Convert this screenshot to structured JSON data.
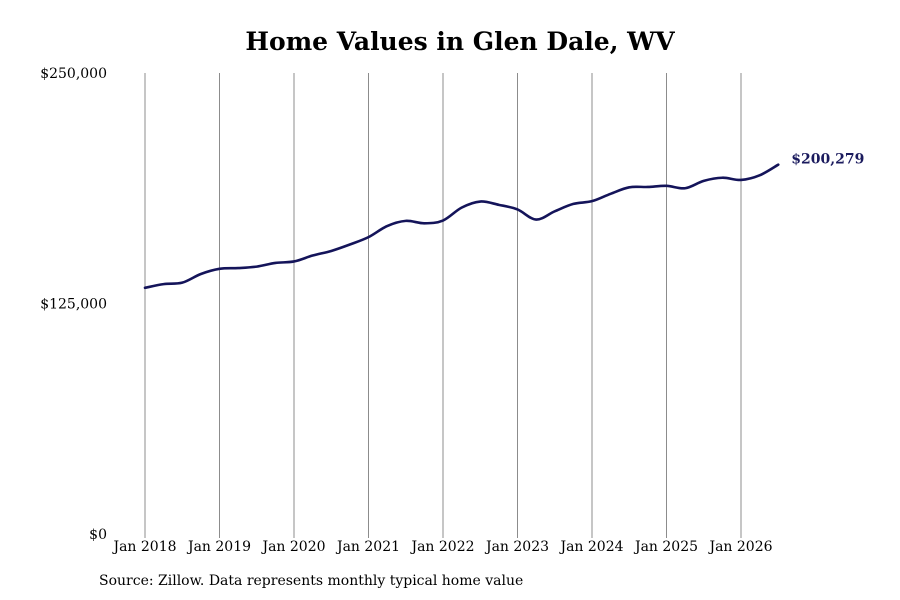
{
  "chart_data": {
    "type": "line",
    "title": "Home Values in Glen Dale, WV",
    "source": "Source: Zillow. Data represents monthly typical home value",
    "xlabel": "",
    "ylabel": "",
    "ylim": [
      0,
      250000
    ],
    "y_ticks": [
      {
        "value": 0,
        "label": "$0"
      },
      {
        "value": 125000,
        "label": "$125,000"
      },
      {
        "value": 250000,
        "label": "$250,000"
      }
    ],
    "x_ticks": [
      {
        "year": 2018,
        "label": "Jan 2018"
      },
      {
        "year": 2019,
        "label": "Jan 2019"
      },
      {
        "year": 2020,
        "label": "Jan 2020"
      },
      {
        "year": 2021,
        "label": "Jan 2021"
      },
      {
        "year": 2022,
        "label": "Jan 2022"
      },
      {
        "year": 2023,
        "label": "Jan 2023"
      },
      {
        "year": 2024,
        "label": "Jan 2024"
      },
      {
        "year": 2025,
        "label": "Jan 2025"
      },
      {
        "year": 2026,
        "label": "Jan 2026"
      }
    ],
    "vertical_grid": true,
    "line_color": "#14145a",
    "end_label": "$200,279",
    "series": [
      {
        "values": [
          {
            "x": 2018.0,
            "y": 133500
          },
          {
            "x": 2018.25,
            "y": 135500
          },
          {
            "x": 2018.5,
            "y": 136300
          },
          {
            "x": 2018.75,
            "y": 141000
          },
          {
            "x": 2019.0,
            "y": 143800
          },
          {
            "x": 2019.25,
            "y": 144200
          },
          {
            "x": 2019.5,
            "y": 145000
          },
          {
            "x": 2019.75,
            "y": 147000
          },
          {
            "x": 2020.0,
            "y": 147800
          },
          {
            "x": 2020.25,
            "y": 151000
          },
          {
            "x": 2020.5,
            "y": 153500
          },
          {
            "x": 2020.75,
            "y": 157000
          },
          {
            "x": 2021.0,
            "y": 161000
          },
          {
            "x": 2021.25,
            "y": 167000
          },
          {
            "x": 2021.5,
            "y": 169800
          },
          {
            "x": 2021.75,
            "y": 168500
          },
          {
            "x": 2022.0,
            "y": 170000
          },
          {
            "x": 2022.25,
            "y": 177000
          },
          {
            "x": 2022.5,
            "y": 180300
          },
          {
            "x": 2022.75,
            "y": 178500
          },
          {
            "x": 2023.0,
            "y": 176000
          },
          {
            "x": 2023.25,
            "y": 170500
          },
          {
            "x": 2023.5,
            "y": 175000
          },
          {
            "x": 2023.75,
            "y": 179000
          },
          {
            "x": 2024.0,
            "y": 180500
          },
          {
            "x": 2024.25,
            "y": 184500
          },
          {
            "x": 2024.5,
            "y": 188000
          },
          {
            "x": 2024.75,
            "y": 188200
          },
          {
            "x": 2025.0,
            "y": 188800
          },
          {
            "x": 2025.25,
            "y": 187500
          },
          {
            "x": 2025.5,
            "y": 191500
          },
          {
            "x": 2025.75,
            "y": 193200
          },
          {
            "x": 2026.0,
            "y": 192000
          },
          {
            "x": 2026.25,
            "y": 194500
          },
          {
            "x": 2026.5,
            "y": 200279
          }
        ]
      }
    ]
  }
}
